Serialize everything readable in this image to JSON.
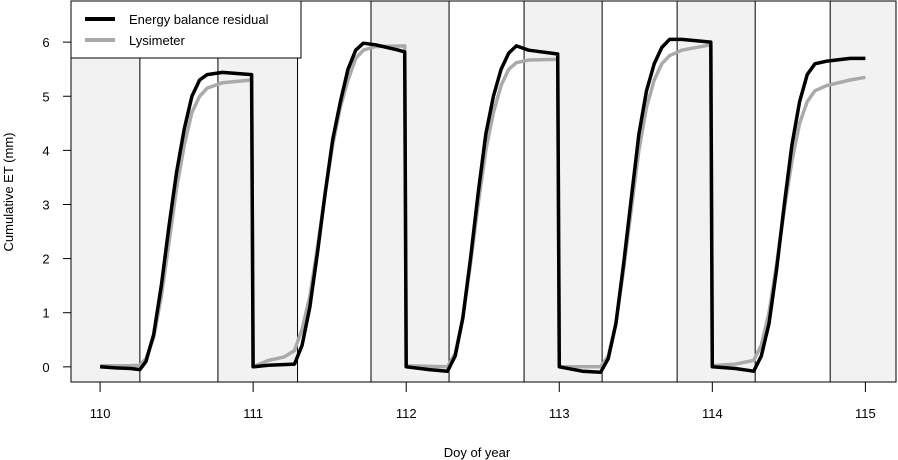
{
  "chart_data": {
    "type": "line",
    "xlabel": "Doy of year",
    "ylabel": "Cumulative ET  (mm)",
    "xlim": [
      109.81,
      115.2
    ],
    "ylim": [
      -0.28,
      6.76
    ],
    "xticks": [
      "110",
      "111",
      "112",
      "113",
      "114",
      "115"
    ],
    "yticks": [
      "0",
      "1",
      "2",
      "3",
      "4",
      "5",
      "6"
    ],
    "grid": false,
    "legend": "top-left",
    "night_shading": [
      [
        109.81,
        110.26
      ],
      [
        110.77,
        111.29
      ],
      [
        111.77,
        112.28
      ],
      [
        112.77,
        113.28
      ],
      [
        113.77,
        114.28
      ],
      [
        114.77,
        115.2
      ]
    ],
    "shade_color": "#f2f2f2",
    "series": [
      {
        "name": "Energy balance residual",
        "color": "#000000",
        "points": [
          [
            110.0,
            0
          ],
          [
            110.1,
            -0.02
          ],
          [
            110.2,
            -0.03
          ],
          [
            110.26,
            -0.05
          ],
          [
            110.3,
            0.1
          ],
          [
            110.35,
            0.6
          ],
          [
            110.4,
            1.5
          ],
          [
            110.45,
            2.6
          ],
          [
            110.5,
            3.6
          ],
          [
            110.55,
            4.4
          ],
          [
            110.6,
            5.0
          ],
          [
            110.65,
            5.3
          ],
          [
            110.7,
            5.4
          ],
          [
            110.8,
            5.44
          ],
          [
            110.99,
            5.4
          ],
          [
            111.0,
            0
          ],
          [
            111.1,
            0.03
          ],
          [
            111.27,
            0.05
          ],
          [
            111.32,
            0.4
          ],
          [
            111.37,
            1.1
          ],
          [
            111.42,
            2.1
          ],
          [
            111.47,
            3.2
          ],
          [
            111.52,
            4.2
          ],
          [
            111.57,
            4.9
          ],
          [
            111.62,
            5.5
          ],
          [
            111.67,
            5.85
          ],
          [
            111.72,
            5.98
          ],
          [
            111.8,
            5.95
          ],
          [
            111.95,
            5.85
          ],
          [
            111.99,
            5.82
          ],
          [
            112.0,
            0
          ],
          [
            112.15,
            -0.05
          ],
          [
            112.27,
            -0.08
          ],
          [
            112.32,
            0.2
          ],
          [
            112.37,
            0.9
          ],
          [
            112.42,
            2.0
          ],
          [
            112.47,
            3.2
          ],
          [
            112.52,
            4.3
          ],
          [
            112.57,
            5.0
          ],
          [
            112.62,
            5.5
          ],
          [
            112.67,
            5.8
          ],
          [
            112.72,
            5.93
          ],
          [
            112.8,
            5.85
          ],
          [
            112.99,
            5.78
          ],
          [
            113.0,
            0
          ],
          [
            113.15,
            -0.08
          ],
          [
            113.27,
            -0.1
          ],
          [
            113.32,
            0.15
          ],
          [
            113.37,
            0.8
          ],
          [
            113.42,
            1.9
          ],
          [
            113.47,
            3.1
          ],
          [
            113.52,
            4.3
          ],
          [
            113.57,
            5.1
          ],
          [
            113.62,
            5.6
          ],
          [
            113.67,
            5.9
          ],
          [
            113.72,
            6.05
          ],
          [
            113.8,
            6.05
          ],
          [
            113.99,
            6.0
          ],
          [
            114.0,
            0
          ],
          [
            114.15,
            -0.03
          ],
          [
            114.27,
            -0.08
          ],
          [
            114.32,
            0.2
          ],
          [
            114.37,
            0.8
          ],
          [
            114.42,
            1.8
          ],
          [
            114.47,
            3.0
          ],
          [
            114.52,
            4.1
          ],
          [
            114.57,
            4.9
          ],
          [
            114.62,
            5.4
          ],
          [
            114.67,
            5.6
          ],
          [
            114.75,
            5.65
          ],
          [
            114.9,
            5.7
          ],
          [
            115.0,
            5.7
          ]
        ]
      },
      {
        "name": "Lysimeter",
        "color": "#aaaaaa",
        "points": [
          [
            110.0,
            0.02
          ],
          [
            110.2,
            0.02
          ],
          [
            110.26,
            0.03
          ],
          [
            110.3,
            0.15
          ],
          [
            110.35,
            0.55
          ],
          [
            110.4,
            1.3
          ],
          [
            110.45,
            2.3
          ],
          [
            110.5,
            3.3
          ],
          [
            110.55,
            4.1
          ],
          [
            110.6,
            4.7
          ],
          [
            110.65,
            5.0
          ],
          [
            110.7,
            5.15
          ],
          [
            110.8,
            5.25
          ],
          [
            110.99,
            5.3
          ],
          [
            111.0,
            0
          ],
          [
            111.1,
            0.12
          ],
          [
            111.2,
            0.18
          ],
          [
            111.27,
            0.3
          ],
          [
            111.32,
            0.7
          ],
          [
            111.37,
            1.3
          ],
          [
            111.42,
            2.2
          ],
          [
            111.47,
            3.2
          ],
          [
            111.52,
            4.1
          ],
          [
            111.57,
            4.8
          ],
          [
            111.62,
            5.3
          ],
          [
            111.67,
            5.7
          ],
          [
            111.72,
            5.85
          ],
          [
            111.8,
            5.92
          ],
          [
            111.99,
            5.93
          ],
          [
            112.0,
            0.02
          ],
          [
            112.27,
            0.0
          ],
          [
            112.32,
            0.25
          ],
          [
            112.37,
            0.9
          ],
          [
            112.42,
            1.9
          ],
          [
            112.47,
            3.0
          ],
          [
            112.52,
            4.0
          ],
          [
            112.57,
            4.7
          ],
          [
            112.62,
            5.2
          ],
          [
            112.67,
            5.5
          ],
          [
            112.72,
            5.62
          ],
          [
            112.8,
            5.67
          ],
          [
            112.99,
            5.68
          ],
          [
            113.0,
            0.0
          ],
          [
            113.27,
            0.0
          ],
          [
            113.32,
            0.2
          ],
          [
            113.37,
            0.8
          ],
          [
            113.42,
            1.8
          ],
          [
            113.47,
            2.9
          ],
          [
            113.52,
            4.0
          ],
          [
            113.57,
            4.8
          ],
          [
            113.62,
            5.3
          ],
          [
            113.67,
            5.6
          ],
          [
            113.72,
            5.75
          ],
          [
            113.8,
            5.85
          ],
          [
            113.99,
            5.95
          ],
          [
            114.0,
            0.02
          ],
          [
            114.15,
            0.05
          ],
          [
            114.27,
            0.12
          ],
          [
            114.32,
            0.4
          ],
          [
            114.37,
            1.0
          ],
          [
            114.42,
            1.9
          ],
          [
            114.47,
            2.9
          ],
          [
            114.52,
            3.8
          ],
          [
            114.57,
            4.5
          ],
          [
            114.62,
            4.9
          ],
          [
            114.67,
            5.1
          ],
          [
            114.75,
            5.2
          ],
          [
            114.9,
            5.3
          ],
          [
            115.0,
            5.35
          ]
        ]
      }
    ]
  }
}
